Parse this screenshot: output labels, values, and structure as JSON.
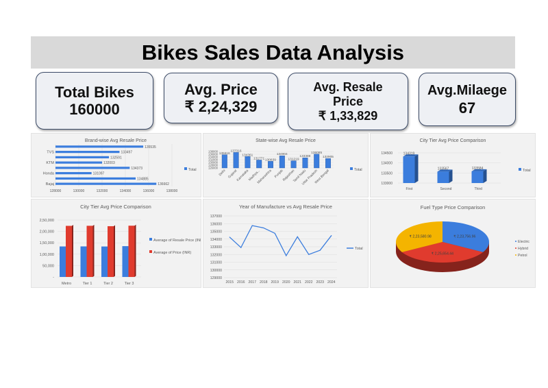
{
  "title": "Bikes Sales Data Analysis",
  "kpis": [
    {
      "label": "Total Bikes",
      "value": "160000"
    },
    {
      "label": "Avg. Price",
      "value": "₹ 2,24,329"
    },
    {
      "label": "Avg. Resale Price",
      "value": "₹ 1,33,829"
    },
    {
      "label": "Avg.Milaege",
      "value": "67"
    }
  ],
  "colors": {
    "blue": "#3b7ddd",
    "red": "#e03b2e",
    "yellow": "#f4b400",
    "panel": "#f2f2f2"
  },
  "chart_data": [
    {
      "type": "bar",
      "orientation": "horizontal",
      "title": "Brand-wise Avg Resale Price",
      "categories": [
        "Bajaj",
        "",
        "Honda",
        "",
        "KTM",
        "",
        "TVS",
        ""
      ],
      "series": [
        {
          "name": "Total",
          "values": [
            136662,
            134885,
            131097,
            134373,
            132003,
            132591,
            133497,
            135535
          ]
        }
      ],
      "xlim": [
        128000,
        138000
      ],
      "ticks": [
        128000,
        130000,
        132000,
        134000,
        136000,
        138000
      ],
      "legend": "right",
      "grid": true
    },
    {
      "type": "bar",
      "title": "State-wise Avg Resale Price",
      "categories": [
        "Delhi",
        "Gujarat",
        "Karnataka",
        "Madhya...",
        "Maharashtra",
        "Punjab",
        "Rajasthan",
        "Tamil Nadu",
        "Uttar Pradesh",
        "West Bengal"
      ],
      "series": [
        {
          "name": "Total",
          "values": [
            135616,
            137316,
            134361,
            131771,
            130839,
            134904,
            131219,
            133389,
            136085,
            132905
          ]
        }
      ],
      "ylim": [
        126000,
        138000
      ],
      "ticks": [
        126000,
        128000,
        130000,
        132000,
        134000,
        136000,
        138000
      ],
      "legend": "right",
      "grid": true
    },
    {
      "type": "bar",
      "style": "3d",
      "title": "City Tier Avg Price Comparison",
      "categories": [
        "First",
        "Second",
        "Third"
      ],
      "series": [
        {
          "name": "Total",
          "values": [
            134319,
            133567,
            133584
          ]
        }
      ],
      "ylim": [
        133000,
        134500
      ],
      "ticks": [
        133000,
        133500,
        134000,
        134500
      ],
      "legend": "right",
      "grid": true
    },
    {
      "type": "bar",
      "style": "3d",
      "title": "City Tier Avg Price Comparison",
      "categories": [
        "Metro",
        "Tier 1",
        "Tier 2",
        "Tier 3"
      ],
      "series": [
        {
          "name": "Average of Resale Price (INR)",
          "values": [
            134000,
            134200,
            133800,
            135300
          ]
        },
        {
          "name": "Average of Price (INR)",
          "values": [
            224500,
            224800,
            223000,
            225200
          ]
        }
      ],
      "ylim": [
        0,
        250000
      ],
      "ticks": [
        "-",
        "50,000",
        "1,00,000",
        "1,50,000",
        "2,00,000",
        "2,50,000"
      ],
      "legend": "right",
      "grid": true
    },
    {
      "type": "line",
      "title": "Year of Manufacture vs Avg Resale Price",
      "x": [
        2015,
        2016,
        2017,
        2018,
        2019,
        2020,
        2021,
        2022,
        2023,
        2024
      ],
      "series": [
        {
          "name": "Total",
          "values": [
            134250,
            132900,
            135750,
            135450,
            134750,
            131850,
            134300,
            132000,
            132550,
            134450
          ]
        }
      ],
      "ylim": [
        129000,
        137000
      ],
      "ticks": [
        129000,
        130000,
        131000,
        132000,
        133000,
        134000,
        135000,
        136000,
        137000
      ],
      "legend": "right",
      "grid": true
    },
    {
      "type": "pie",
      "style": "3d",
      "title": "Fuel Type Price Comparison",
      "categories": [
        "Electric",
        "Hybrid",
        "Petrol"
      ],
      "values": [
        223756.96,
        225654.44,
        223580.98
      ],
      "labels": [
        "₹ 2,23,756.96",
        "₹ 2,25,654.44",
        "₹ 2,23,580.98"
      ],
      "legend": "right"
    }
  ]
}
